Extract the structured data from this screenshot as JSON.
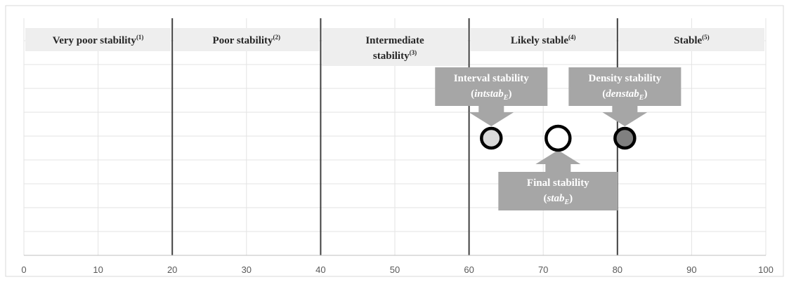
{
  "chart_data": {
    "type": "scatter",
    "xlim": [
      0,
      100
    ],
    "x_ticks": [
      0,
      10,
      20,
      30,
      40,
      50,
      60,
      70,
      80,
      90,
      100
    ],
    "grid": true,
    "category_boundaries": [
      20,
      40,
      60,
      80
    ],
    "categories": [
      {
        "label": "Very poor stability",
        "sup": "(1)",
        "range": [
          0,
          20
        ]
      },
      {
        "label": "Poor stability",
        "sup": "(2)",
        "range": [
          20,
          40
        ]
      },
      {
        "label": "Intermediate stability",
        "line1": "Intermediate",
        "line2": "stability",
        "sup": "(3)",
        "range": [
          40,
          60
        ]
      },
      {
        "label": "Likely stable",
        "sup": "(4)",
        "range": [
          60,
          80
        ]
      },
      {
        "label": "Stable",
        "sup": "(5)",
        "range": [
          80,
          100
        ]
      }
    ],
    "points": [
      {
        "name": "Interval stability",
        "symbol": "intstab",
        "sub": "E",
        "x": 63,
        "fill": "#d9d9d9"
      },
      {
        "name": "Final stability",
        "symbol": "stab",
        "sub": "E",
        "x": 72,
        "fill": "#ffffff"
      },
      {
        "name": "Density stability",
        "symbol": "denstab",
        "sub": "E",
        "x": 81,
        "fill": "#808080"
      }
    ],
    "colors": {
      "category_band": "#eeeeee",
      "callout": "#a6a6a6",
      "boundary_line": "#404040",
      "grid": "#e3e3e3",
      "marker_stroke": "#000000"
    }
  }
}
